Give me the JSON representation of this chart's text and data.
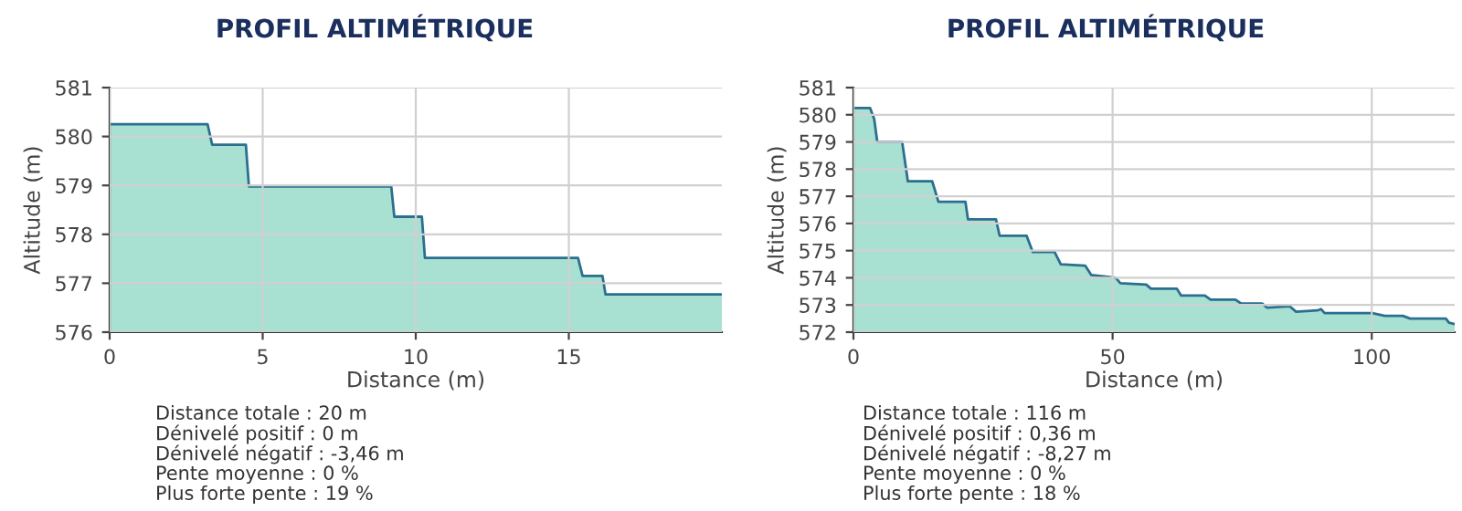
{
  "chart_data": [
    {
      "type": "area",
      "title": "PROFIL ALTIMÉTRIQUE",
      "xlabel": "Distance (m)",
      "ylabel": "Altitude (m)",
      "series": [
        {
          "color": "#a8e0d2",
          "x": [
            0,
            3.2,
            3.35,
            4.45,
            4.55,
            9.2,
            9.3,
            10.2,
            10.3,
            15.3,
            15.45,
            16.1,
            16.2,
            20
          ],
          "values": [
            580.25,
            580.25,
            579.83,
            579.83,
            578.98,
            578.98,
            578.36,
            578.36,
            577.52,
            577.52,
            577.15,
            577.15,
            576.77,
            576.77
          ]
        }
      ],
      "xlim": [
        0,
        20
      ],
      "ylim": [
        576,
        581
      ],
      "xticks": [
        0,
        5,
        10,
        15
      ],
      "yticks": [
        576,
        577,
        578,
        579,
        580,
        581
      ],
      "grid": true,
      "annotations": [
        "Distance totale : 20 m",
        "Dénivelé positif : 0 m",
        "Dénivelé négatif : -3,46 m",
        "Pente moyenne : 0 %",
        "Plus forte pente : 19 %"
      ]
    },
    {
      "type": "area",
      "title": "PROFIL ALTIMÉTRIQUE",
      "xlabel": "Distance (m)",
      "ylabel": "Altitude (m)",
      "series": [
        {
          "color": "#a8e0d2",
          "x": [
            0,
            3.2,
            4.0,
            4.6,
            9.4,
            10.5,
            15.2,
            16.4,
            21.6,
            22.1,
            27.5,
            28.2,
            33.4,
            34.6,
            38.8,
            40,
            44.7,
            45.9,
            50.6,
            51.5,
            56.5,
            57.4,
            62.4,
            63.2,
            67.8,
            68.9,
            73.7,
            74.8,
            78.9,
            79.8,
            84.2,
            85.4,
            89.5,
            90.2,
            90.9,
            94.2,
            100.1,
            102.5,
            106,
            107.4,
            114.3,
            114.9,
            116
          ],
          "values": [
            580.25,
            580.25,
            579.85,
            579.0,
            579.0,
            577.55,
            577.55,
            576.8,
            576.8,
            576.15,
            576.15,
            575.55,
            575.55,
            574.95,
            574.95,
            574.5,
            574.45,
            574.1,
            574.0,
            573.8,
            573.75,
            573.6,
            573.6,
            573.35,
            573.35,
            573.2,
            573.2,
            573.05,
            573.05,
            572.9,
            572.95,
            572.75,
            572.8,
            572.85,
            572.7,
            572.7,
            572.7,
            572.6,
            572.6,
            572.5,
            572.5,
            572.35,
            572.3
          ]
        }
      ],
      "xlim": [
        0,
        116
      ],
      "ylim": [
        572,
        581
      ],
      "xticks": [
        0,
        50,
        100
      ],
      "yticks": [
        572,
        573,
        574,
        575,
        576,
        577,
        578,
        579,
        580,
        581
      ],
      "grid": true,
      "annotations": [
        "Distance totale : 116 m",
        "Dénivelé positif : 0,36 m",
        "Dénivelé négatif : -8,27 m",
        "Pente moyenne : 0 %",
        "Plus forte pente : 18 %"
      ]
    }
  ]
}
